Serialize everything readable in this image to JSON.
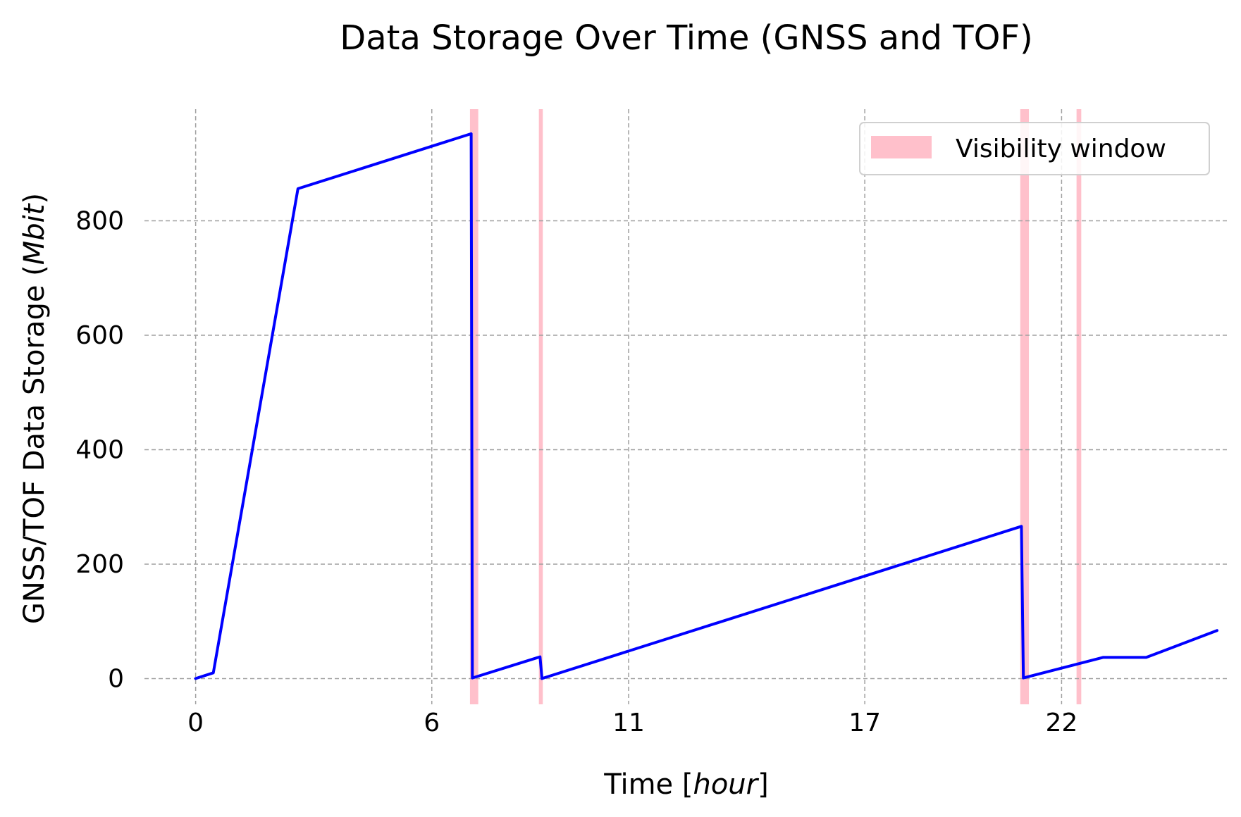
{
  "chart_data": {
    "type": "line",
    "title": "Data Storage Over Time (GNSS and TOF)",
    "xlabel": {
      "prefix": "Time [",
      "italic": "hour",
      "suffix": "]"
    },
    "ylabel": {
      "prefix": "GNSS/TOF Data Storage (",
      "italic": "Mbit",
      "suffix": ")"
    },
    "xlim": [
      -1.3,
      26.2
    ],
    "ylim": [
      -45,
      995
    ],
    "xticks": [
      0,
      6,
      11,
      17,
      22
    ],
    "yticks": [
      0,
      200,
      400,
      600,
      800
    ],
    "grid": true,
    "legend_position": "top-right",
    "series": [
      {
        "color": "#0000ff",
        "x": [
          0,
          0.45,
          2.6,
          7.0,
          7.03,
          8.75,
          8.8,
          20.98,
          21.03,
          23.05,
          24.15,
          25.95
        ],
        "y": [
          0,
          10,
          856,
          952,
          1,
          38,
          0,
          266,
          1,
          37,
          37,
          84
        ]
      }
    ],
    "visibility_windows": {
      "label": "Visibility window",
      "color": "#ffc0cb",
      "intervals": [
        [
          6.97,
          7.18
        ],
        [
          8.72,
          8.82
        ],
        [
          20.95,
          21.17
        ],
        [
          22.38,
          22.5
        ]
      ]
    }
  }
}
